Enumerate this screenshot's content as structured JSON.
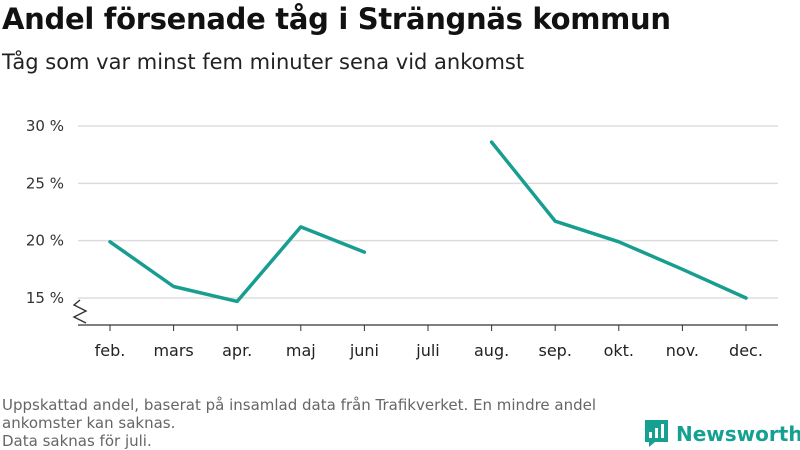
{
  "header": {
    "title": "Andel försenade tåg i Strängnäs kommun",
    "subtitle": "Tåg som var minst fem minuter sena vid ankomst"
  },
  "footer": {
    "note_line1": "Uppskattad andel, baserat på insamlad data från Trafikverket. En mindre andel",
    "note_line2": "ankomster kan saknas.",
    "note_line3": "Data saknas för juli.",
    "brand": "Newsworthy",
    "brand_icon": "newsworthy-logo-icon"
  },
  "chart_data": {
    "type": "line",
    "title": "Andel försenade tåg i Strängnäs kommun",
    "subtitle": "Tåg som var minst fem minuter sena vid ankomst",
    "categories": [
      "feb.",
      "mars",
      "apr.",
      "maj",
      "juni",
      "juli",
      "aug.",
      "sep.",
      "okt.",
      "nov.",
      "dec."
    ],
    "series": [
      {
        "color": "#189d91",
        "values": [
          19.9,
          16.0,
          14.7,
          21.2,
          19.0,
          null,
          28.6,
          21.7,
          19.9,
          17.5,
          15.0
        ]
      }
    ],
    "y_ticks": [
      15,
      20,
      25,
      30
    ],
    "y_tick_labels": [
      "15 %",
      "20 %",
      "25 %",
      "30 %"
    ],
    "ylim": [
      12.5,
      30
    ],
    "y_axis_broken": true,
    "grid": true,
    "xlabel": "",
    "ylabel": ""
  }
}
